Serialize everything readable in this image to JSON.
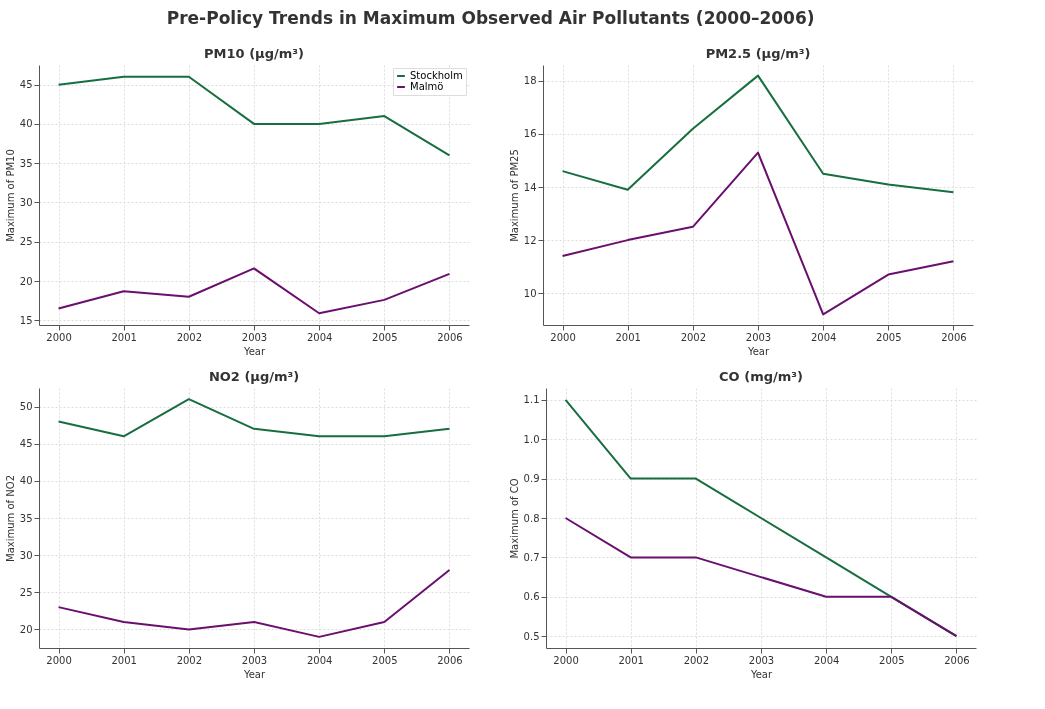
{
  "chart_data": [
    {
      "type": "line",
      "title": "PM10 (µg/m³)",
      "xlabel": "Year",
      "ylabel": "Maximum of PM10",
      "annotations": [
        "Pre-Policy Trends in Maximum Observed Air Pollutants (2000–2006)"
      ],
      "x": [
        2000,
        2001,
        2002,
        2003,
        2004,
        2005,
        2006
      ],
      "xlim": [
        1999.7,
        2006.3
      ],
      "xticks": [
        2000,
        2001,
        2002,
        2003,
        2004,
        2005,
        2006
      ],
      "ylim": [
        14.4,
        47.5
      ],
      "yticks": [
        15,
        20,
        25,
        30,
        35,
        40,
        45
      ],
      "grid": true,
      "legend": "top right",
      "series": [
        {
          "name": "Stockholm",
          "color": "#176e3e",
          "values": [
            45,
            46,
            46,
            40,
            40,
            41,
            36
          ]
        },
        {
          "name": "Malmö",
          "color": "#6a0f6e",
          "values": [
            16.5,
            18.7,
            18,
            21.6,
            15.9,
            17.6,
            20.9
          ]
        }
      ]
    },
    {
      "type": "line",
      "title": "PM2.5 (µg/m³)",
      "xlabel": "Year",
      "ylabel": "Maximum of PM25",
      "x": [
        2000,
        2001,
        2002,
        2003,
        2004,
        2005,
        2006
      ],
      "xlim": [
        1999.7,
        2006.3
      ],
      "xticks": [
        2000,
        2001,
        2002,
        2003,
        2004,
        2005,
        2006
      ],
      "ylim": [
        8.8,
        18.6
      ],
      "yticks": [
        10,
        12,
        14,
        16,
        18
      ],
      "grid": true,
      "series": [
        {
          "color": "#176e3e",
          "values": [
            14.6,
            13.9,
            16.2,
            18.2,
            14.5,
            14.1,
            13.8
          ]
        },
        {
          "color": "#6a0f6e",
          "values": [
            11.4,
            12,
            12.5,
            15.3,
            9.2,
            10.7,
            11.2
          ]
        }
      ]
    },
    {
      "type": "line",
      "title": "NO2 (µg/m³)",
      "xlabel": "Year",
      "ylabel": "Maximum of NO2",
      "x": [
        2000,
        2001,
        2002,
        2003,
        2004,
        2005,
        2006
      ],
      "xlim": [
        1999.7,
        2006.3
      ],
      "xticks": [
        2000,
        2001,
        2002,
        2003,
        2004,
        2005,
        2006
      ],
      "ylim": [
        17.5,
        52.5
      ],
      "yticks": [
        20,
        25,
        30,
        35,
        40,
        45,
        50
      ],
      "grid": true,
      "series": [
        {
          "color": "#176e3e",
          "values": [
            48,
            46,
            51,
            47,
            46,
            46,
            47
          ]
        },
        {
          "color": "#6a0f6e",
          "values": [
            23,
            21,
            20,
            21,
            19,
            21,
            28
          ]
        }
      ]
    },
    {
      "type": "line",
      "title": "CO (mg/m³)",
      "xlabel": "Year",
      "ylabel": "Maximum of CO",
      "x": [
        2000,
        2001,
        2002,
        2003,
        2004,
        2005,
        2006
      ],
      "xlim": [
        1999.7,
        2006.3
      ],
      "xticks": [
        2000,
        2001,
        2002,
        2003,
        2004,
        2005,
        2006
      ],
      "ylim": [
        0.47,
        1.13
      ],
      "yticks": [
        0.5,
        0.6,
        0.7,
        0.8,
        0.9,
        {
          "value": 1,
          "label": "1.0"
        },
        1.1
      ],
      "grid": true,
      "series": [
        {
          "color": "#176e3e",
          "values": [
            1.1,
            0.9,
            0.9,
            0.8,
            0.7,
            0.6,
            0.5
          ]
        },
        {
          "color": "#6a0f6e",
          "values": [
            0.8,
            0.7,
            0.7,
            0.65,
            0.6,
            0.6,
            0.5
          ]
        }
      ]
    }
  ]
}
